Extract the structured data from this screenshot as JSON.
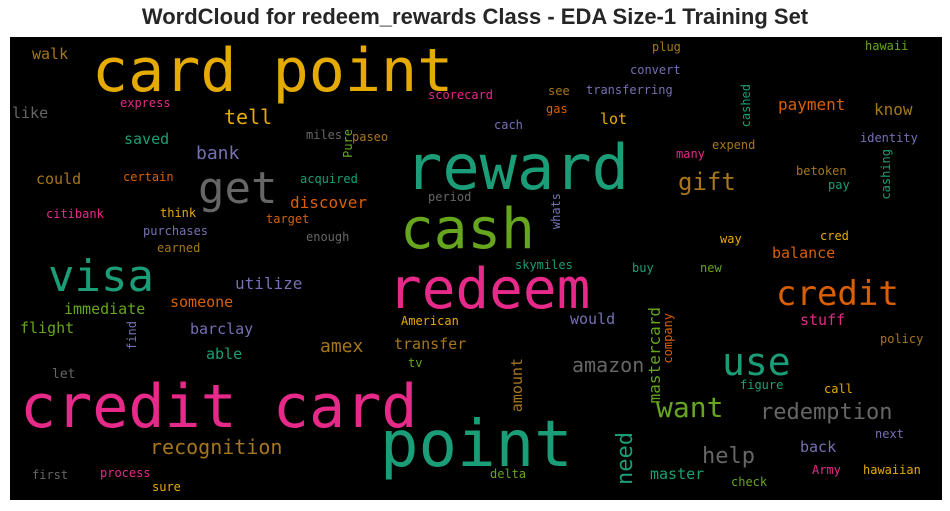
{
  "title": "WordCloud for redeem_rewards Class - EDA Size-1 Training Set",
  "chart_data": {
    "type": "wordcloud",
    "title": "WordCloud for redeem_rewards Class - EDA Size-1 Training Set",
    "background": "#000000",
    "palette": [
      "#1b9e77",
      "#d95f02",
      "#7570b3",
      "#e7298a",
      "#66a61e",
      "#e6ab02",
      "#a6761d",
      "#666666"
    ],
    "words": [
      {
        "text": "card point",
        "weight": 60,
        "color": "#e6ab02"
      },
      {
        "text": "reward",
        "weight": 62,
        "color": "#1b9e77"
      },
      {
        "text": "cash",
        "weight": 56,
        "color": "#66a61e"
      },
      {
        "text": "get",
        "weight": 44,
        "color": "#666666"
      },
      {
        "text": "visa",
        "weight": 44,
        "color": "#1b9e77"
      },
      {
        "text": "redeem",
        "weight": 56,
        "color": "#e7298a"
      },
      {
        "text": "credit card",
        "weight": 60,
        "color": "#e7298a"
      },
      {
        "text": "point",
        "weight": 64,
        "color": "#1b9e77"
      },
      {
        "text": "credit",
        "weight": 34,
        "color": "#d95f02"
      },
      {
        "text": "use",
        "weight": 38,
        "color": "#1b9e77"
      },
      {
        "text": "gift",
        "weight": 24,
        "color": "#a6761d"
      },
      {
        "text": "want",
        "weight": 28,
        "color": "#66a61e"
      },
      {
        "text": "redemption",
        "weight": 22,
        "color": "#666666"
      },
      {
        "text": "need",
        "weight": 22,
        "color": "#1b9e77"
      },
      {
        "text": "help",
        "weight": 22,
        "color": "#666666"
      },
      {
        "text": "recognition",
        "weight": 20,
        "color": "#a6761d"
      },
      {
        "text": "amazon",
        "weight": 20,
        "color": "#666666"
      },
      {
        "text": "amex",
        "weight": 18,
        "color": "#a6761d"
      },
      {
        "text": "tell",
        "weight": 20,
        "color": "#e6ab02"
      },
      {
        "text": "bank",
        "weight": 18,
        "color": "#7570b3"
      },
      {
        "text": "mastercard",
        "weight": 16,
        "color": "#66a61e"
      },
      {
        "text": "payment",
        "weight": 16,
        "color": "#d95f02"
      },
      {
        "text": "know",
        "weight": 16,
        "color": "#a6761d"
      },
      {
        "text": "discover",
        "weight": 16,
        "color": "#d95f02"
      },
      {
        "text": "utilize",
        "weight": 16,
        "color": "#7570b3"
      },
      {
        "text": "immediate",
        "weight": 15,
        "color": "#66a61e"
      },
      {
        "text": "someone",
        "weight": 15,
        "color": "#d95f02"
      },
      {
        "text": "barclay",
        "weight": 15,
        "color": "#7570b3"
      },
      {
        "text": "flight",
        "weight": 15,
        "color": "#66a61e"
      },
      {
        "text": "able",
        "weight": 15,
        "color": "#1b9e77"
      },
      {
        "text": "transfer",
        "weight": 15,
        "color": "#a6761d"
      },
      {
        "text": "would",
        "weight": 15,
        "color": "#7570b3"
      },
      {
        "text": "amount",
        "weight": 15,
        "color": "#a6761d"
      },
      {
        "text": "balance",
        "weight": 15,
        "color": "#d95f02"
      },
      {
        "text": "stuff",
        "weight": 15,
        "color": "#e7298a"
      },
      {
        "text": "back",
        "weight": 15,
        "color": "#7570b3"
      },
      {
        "text": "master",
        "weight": 15,
        "color": "#1b9e77"
      },
      {
        "text": "could",
        "weight": 15,
        "color": "#a6761d"
      },
      {
        "text": "saved",
        "weight": 15,
        "color": "#1b9e77"
      },
      {
        "text": "like",
        "weight": 15,
        "color": "#666666"
      },
      {
        "text": "walk",
        "weight": 15,
        "color": "#a6761d"
      },
      {
        "text": "lot",
        "weight": 15,
        "color": "#e6ab02"
      },
      {
        "text": "let",
        "weight": 13,
        "color": "#666666"
      },
      {
        "text": "express",
        "weight": 12,
        "color": "#e7298a"
      },
      {
        "text": "scorecard",
        "weight": 12,
        "color": "#e7298a"
      },
      {
        "text": "see",
        "weight": 12,
        "color": "#a6761d"
      },
      {
        "text": "transferring",
        "weight": 12,
        "color": "#7570b3"
      },
      {
        "text": "gas",
        "weight": 12,
        "color": "#d95f02"
      },
      {
        "text": "cach",
        "weight": 12,
        "color": "#7570b3"
      },
      {
        "text": "miles",
        "weight": 12,
        "color": "#666666"
      },
      {
        "text": "Pure",
        "weight": 12,
        "color": "#66a61e"
      },
      {
        "text": "paseo",
        "weight": 12,
        "color": "#a6761d"
      },
      {
        "text": "plug",
        "weight": 12,
        "color": "#a6761d"
      },
      {
        "text": "convert",
        "weight": 12,
        "color": "#7570b3"
      },
      {
        "text": "cashed",
        "weight": 12,
        "color": "#1b9e77"
      },
      {
        "text": "hawaii",
        "weight": 12,
        "color": "#66a61e"
      },
      {
        "text": "identity",
        "weight": 12,
        "color": "#7570b3"
      },
      {
        "text": "expend",
        "weight": 12,
        "color": "#a6761d"
      },
      {
        "text": "many",
        "weight": 12,
        "color": "#e7298a"
      },
      {
        "text": "cashing",
        "weight": 12,
        "color": "#1b9e77"
      },
      {
        "text": "betoken",
        "weight": 12,
        "color": "#a6761d"
      },
      {
        "text": "pay",
        "weight": 12,
        "color": "#1b9e77"
      },
      {
        "text": "certain",
        "weight": 12,
        "color": "#d95f02"
      },
      {
        "text": "acquired",
        "weight": 12,
        "color": "#1b9e77"
      },
      {
        "text": "period",
        "weight": 12,
        "color": "#666666"
      },
      {
        "text": "citibank",
        "weight": 12,
        "color": "#e7298a"
      },
      {
        "text": "think",
        "weight": 12,
        "color": "#e6ab02"
      },
      {
        "text": "target",
        "weight": 12,
        "color": "#d95f02"
      },
      {
        "text": "enough",
        "weight": 12,
        "color": "#666666"
      },
      {
        "text": "whats",
        "weight": 12,
        "color": "#7570b3"
      },
      {
        "text": "purchases",
        "weight": 12,
        "color": "#7570b3"
      },
      {
        "text": "earned",
        "weight": 12,
        "color": "#a6761d"
      },
      {
        "text": "cred",
        "weight": 12,
        "color": "#e6ab02"
      },
      {
        "text": "way",
        "weight": 12,
        "color": "#e6ab02"
      },
      {
        "text": "skymiles",
        "weight": 12,
        "color": "#1b9e77"
      },
      {
        "text": "buy",
        "weight": 12,
        "color": "#1b9e77"
      },
      {
        "text": "new",
        "weight": 12,
        "color": "#66a61e"
      },
      {
        "text": "American",
        "weight": 12,
        "color": "#e6ab02"
      },
      {
        "text": "company",
        "weight": 12,
        "color": "#d95f02"
      },
      {
        "text": "policy",
        "weight": 12,
        "color": "#a6761d"
      },
      {
        "text": "find",
        "weight": 12,
        "color": "#7570b3"
      },
      {
        "text": "tv",
        "weight": 12,
        "color": "#66a61e"
      },
      {
        "text": "figure",
        "weight": 12,
        "color": "#1b9e77"
      },
      {
        "text": "call",
        "weight": 12,
        "color": "#e6ab02"
      },
      {
        "text": "next",
        "weight": 12,
        "color": "#7570b3"
      },
      {
        "text": "Army",
        "weight": 12,
        "color": "#e7298a"
      },
      {
        "text": "hawaiian",
        "weight": 12,
        "color": "#e6ab02"
      },
      {
        "text": "first",
        "weight": 12,
        "color": "#666666"
      },
      {
        "text": "process",
        "weight": 12,
        "color": "#e7298a"
      },
      {
        "text": "sure",
        "weight": 12,
        "color": "#e6ab02"
      },
      {
        "text": "delta",
        "weight": 12,
        "color": "#66a61e"
      },
      {
        "text": "check",
        "weight": 12,
        "color": "#66a61e"
      }
    ]
  }
}
